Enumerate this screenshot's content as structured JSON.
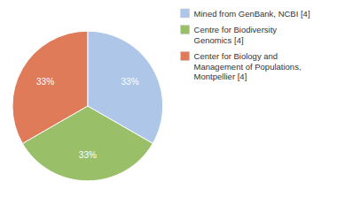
{
  "chart_data": {
    "type": "pie",
    "categories": [
      "Mined from GenBank, NCBI [4]",
      "Centre for Biodiversity\nGenomics [4]",
      "Center for Biology and\nManagement of Populations,\nMontpellier [4]"
    ],
    "values": [
      33.33,
      33.33,
      33.34
    ],
    "value_labels": [
      "33%",
      "33%",
      "33%"
    ],
    "colors": [
      "#aec6e8",
      "#99c068",
      "#e07b5a"
    ],
    "data_labels": true,
    "legend": "right"
  }
}
